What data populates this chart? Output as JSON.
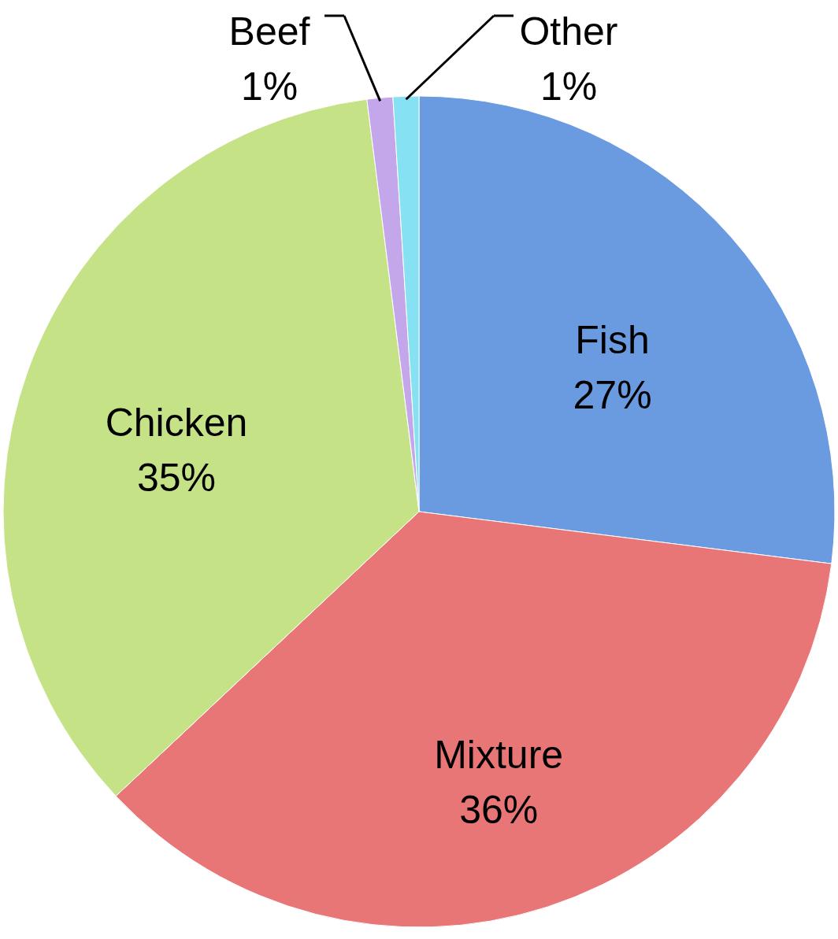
{
  "chart_data": {
    "type": "pie",
    "categories": [
      "Fish",
      "Mixture",
      "Chicken",
      "Beef",
      "Other"
    ],
    "values": [
      27,
      36,
      35,
      1,
      1
    ],
    "value_labels": [
      "27%",
      "36%",
      "35%",
      "1%",
      "1%"
    ],
    "colors": [
      "#6a9be0",
      "#e87676",
      "#c6e287",
      "#c4a6ea",
      "#86e2f2"
    ]
  }
}
